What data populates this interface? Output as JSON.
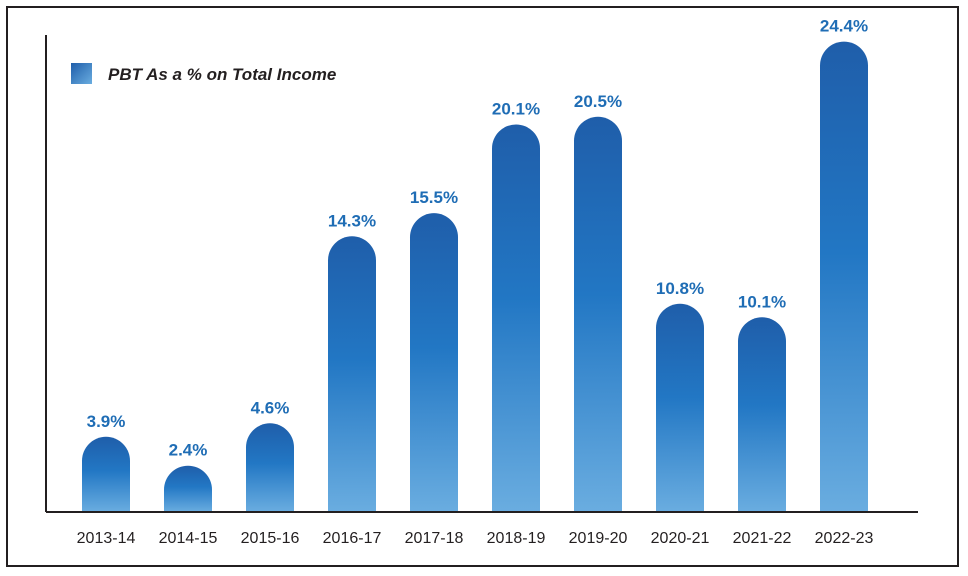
{
  "chart_data": {
    "type": "bar",
    "title": "",
    "xlabel": "",
    "ylabel": "",
    "categories": [
      "2013-14",
      "2014-15",
      "2015-16",
      "2016-17",
      "2017-18",
      "2018-19",
      "2019-20",
      "2020-21",
      "2021-22",
      "2022-23"
    ],
    "series": [
      {
        "name": "PBT As a % on Total Income",
        "values": [
          3.9,
          2.4,
          4.6,
          14.3,
          15.5,
          20.1,
          20.5,
          10.8,
          10.1,
          24.4
        ],
        "labels": [
          "3.9%",
          "2.4%",
          "4.6%",
          "14.3%",
          "15.5%",
          "20.1%",
          "20.5%",
          "10.8%",
          "10.1%",
          "24.4%"
        ]
      }
    ],
    "ylim": [
      0,
      25
    ],
    "legend_position": "top-left",
    "grid": false,
    "colors": {
      "bar_top": "#1f5eaa",
      "bar_mid": "#2277c4",
      "bar_bottom": "#6aade0",
      "label": "#1f6db5",
      "axis": "#231f20"
    }
  }
}
